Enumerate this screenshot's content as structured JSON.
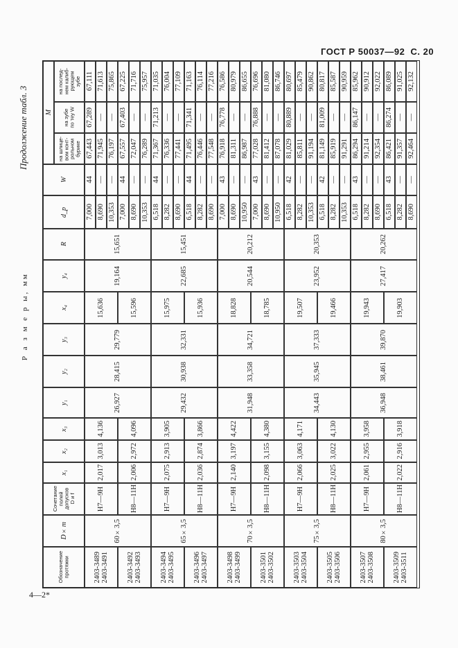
{
  "page": {
    "gost": "ГОСТ Р 50037—92  С. 20",
    "continuation": "Продолжение табл. 3",
    "units": "Р а з м е р ы, мм",
    "footer": "4—2*"
  },
  "columns": {
    "designation": "Обозначение\nпротяжки",
    "dm": "D×m",
    "fit": "Сочетание\nполей\nдопусков\nD и f",
    "x1": "x₁",
    "x2": "x₂",
    "x3": "x₃",
    "y1": "y₁",
    "y2": "y₂",
    "y3": "y₃",
    "x4": "x₄",
    "y4": "y₄",
    "R": "R",
    "dp": "d_p",
    "W": "W",
    "M": "M",
    "M1": "на шлице-\nвом конт-\nрольном\nбурике",
    "M2": "на зубе\nпо теу W",
    "M3": "на послед-\nнем калиб-\nрующем\nзубе"
  },
  "table": {
    "sizes": [
      {
        "dm": "60×3,5",
        "R": "15,651",
        "y4": "19,164",
        "y3": "29,779",
        "y2": "28,415",
        "y1": "26,927",
        "items": [
          {
            "designation": "2403-3489\n2403-3491",
            "fit": "H7—9H",
            "x1": "2,017",
            "x2": "3,013",
            "x3": "4,136",
            "x4": "15,636",
            "rows": [
              {
                "dp": "7,000",
                "W": "44",
                "M1": "67,443",
                "M2": "67,289",
                "M3": "67,111"
              },
              {
                "dp": "8,690",
                "W": "—",
                "M1": "71,945",
                "M2": "—",
                "M3": "71,613"
              },
              {
                "dp": "10,353",
                "W": "—",
                "M1": "76,197",
                "M2": "—",
                "M3": "75,865"
              }
            ]
          },
          {
            "designation": "2403-3492\n2403-3493",
            "fit": "H8—11H",
            "x1": "2,006",
            "x2": "2,972",
            "x3": "4,096",
            "x4": "15,596",
            "rows": [
              {
                "dp": "7,000",
                "W": "44",
                "M1": "67,557",
                "M2": "67,403",
                "M3": "67,225"
              },
              {
                "dp": "8,690",
                "W": "—",
                "M1": "72,047",
                "M2": "—",
                "M3": "71,716"
              },
              {
                "dp": "10,353",
                "W": "—",
                "M1": "76,289",
                "M2": "—",
                "M3": "75,957"
              }
            ]
          }
        ]
      },
      {
        "dm": "65×3,5",
        "R": "15,451",
        "y4": "22,685",
        "y3": "32,331",
        "y2": "30,938",
        "y1": "29,432",
        "items": [
          {
            "designation": "2403-3494\n2403-3495",
            "fit": "H7—9H",
            "x1": "2,075",
            "x2": "2,913",
            "x3": "3,905",
            "x4": "15,975",
            "rows": [
              {
                "dp": "6,518",
                "W": "44",
                "M1": "71,367",
                "M2": "71,213",
                "M3": "71,035"
              },
              {
                "dp": "8,282",
                "W": "—",
                "M1": "76,336",
                "M2": "—",
                "M3": "76,004"
              },
              {
                "dp": "8,690",
                "W": "—",
                "M1": "77,441",
                "M2": "—",
                "M3": "77,109"
              }
            ]
          },
          {
            "designation": "2403-3496\n2403-3497",
            "fit": "H8—11H",
            "x1": "2,036",
            "x2": "2,874",
            "x3": "3,866",
            "x4": "15,936",
            "rows": [
              {
                "dp": "6,518",
                "W": "44",
                "M1": "71,495",
                "M2": "71,341",
                "M3": "71,163"
              },
              {
                "dp": "8,282",
                "W": "—",
                "M1": "76,446",
                "M2": "—",
                "M3": "76,114"
              },
              {
                "dp": "8,690",
                "W": "—",
                "M1": "77,548",
                "M2": "—",
                "M3": "77,216"
              }
            ]
          }
        ]
      },
      {
        "dm": "70×3,5",
        "R": "20,212",
        "y4": "20,544",
        "y3": "34,721",
        "y2": "33,358",
        "y1": "31,948",
        "items": [
          {
            "designation": "2403-3498\n2403-3499",
            "fit": "H7—9H",
            "x1": "2,140",
            "x2": "3,197",
            "x3": "4,422",
            "x4": "18,828",
            "rows": [
              {
                "dp": "7,000",
                "W": "43",
                "M1": "76,918",
                "M2": "76,778",
                "M3": "76,586"
              },
              {
                "dp": "8,690",
                "W": "—",
                "M1": "81,311",
                "M2": "—",
                "M3": "80,979"
              },
              {
                "dp": "10,950",
                "W": "—",
                "M1": "86,987",
                "M2": "—",
                "M3": "86,655"
              }
            ]
          },
          {
            "designation": "2403-3501\n2403-3502",
            "fit": "H8—11H",
            "x1": "2,098",
            "x2": "3,155",
            "x3": "4,380",
            "x4": "18,785",
            "rows": [
              {
                "dp": "7,000",
                "W": "43",
                "M1": "77,028",
                "M2": "76,888",
                "M3": "76,696"
              },
              {
                "dp": "8,690",
                "W": "—",
                "M1": "81,412",
                "M2": "—",
                "M3": "81,080"
              },
              {
                "dp": "10,950",
                "W": "—",
                "M1": "87,078",
                "M2": "—",
                "M3": "86,746"
              }
            ]
          }
        ]
      },
      {
        "dm": "75×3,5",
        "R": "20,353",
        "y4": "23,952",
        "y3": "37,333",
        "y2": "35,945",
        "y1": "34,443",
        "items": [
          {
            "designation": "2403-3503\n2403-3504",
            "fit": "H7—9H",
            "x1": "2,066",
            "x2": "3,063",
            "x3": "4,171",
            "x4": "19,507",
            "rows": [
              {
                "dp": "6,518",
                "W": "42",
                "M1": "81,029",
                "M2": "80,889",
                "M3": "80,697"
              },
              {
                "dp": "8,282",
                "W": "—",
                "M1": "85,811",
                "M2": "—",
                "M3": "85,479"
              },
              {
                "dp": "10,353",
                "W": "—",
                "M1": "91,194",
                "M2": "—",
                "M3": "90,862"
              }
            ]
          },
          {
            "designation": "2403-3505\n2403-3506",
            "fit": "H8—11H",
            "x1": "2,025",
            "x2": "3,022",
            "x3": "4,130",
            "x4": "19,466",
            "rows": [
              {
                "dp": "6,518",
                "W": "42",
                "M1": "81,149",
                "M2": "81,009",
                "M3": "80,817"
              },
              {
                "dp": "8,282",
                "W": "—",
                "M1": "85,919",
                "M2": "—",
                "M3": "85,587"
              },
              {
                "dp": "10,353",
                "W": "—",
                "M1": "91,291",
                "M2": "—",
                "M3": "90,959"
              }
            ]
          }
        ]
      },
      {
        "dm": "80×3,5",
        "R": "20,262",
        "y4": "27,417",
        "y3": "39,870",
        "y2": "38,461",
        "y1": "36,948",
        "items": [
          {
            "designation": "2403-3507\n2403-3508",
            "fit": "H7—9H",
            "x1": "2,061",
            "x2": "2,955",
            "x3": "3,958",
            "x4": "19,943",
            "rows": [
              {
                "dp": "6,518",
                "W": "43",
                "M1": "86,294",
                "M2": "86,147",
                "M3": "85,962"
              },
              {
                "dp": "8,282",
                "W": "—",
                "M1": "91,214",
                "M2": "—",
                "M3": "90,912"
              },
              {
                "dp": "8,690",
                "W": "—",
                "M1": "92,354",
                "M2": "—",
                "M3": "92,022"
              }
            ]
          },
          {
            "designation": "2403-3509\n2403-3511",
            "fit": "H8—11H",
            "x1": "2,022",
            "x2": "2,916",
            "x3": "3,918",
            "x4": "19,903",
            "rows": [
              {
                "dp": "6,518",
                "W": "43",
                "M1": "86,421",
                "M2": "86,274",
                "M3": "86,089"
              },
              {
                "dp": "8,282",
                "W": "—",
                "M1": "91,357",
                "M2": "—",
                "M3": "91,025"
              },
              {
                "dp": "8,690",
                "W": "—",
                "M1": "92,464",
                "M2": "—",
                "M3": "92,132"
              }
            ]
          }
        ]
      }
    ]
  }
}
